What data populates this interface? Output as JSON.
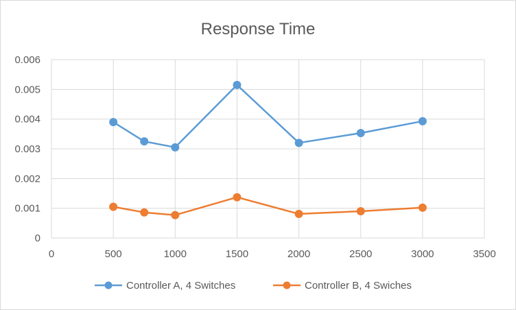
{
  "chart_data": {
    "type": "scatter",
    "title": "Response Time",
    "xlabel": "",
    "ylabel": "",
    "xlim": [
      0,
      3500
    ],
    "ylim": [
      0,
      0.006
    ],
    "xticks": [
      0,
      500,
      1000,
      1500,
      2000,
      2500,
      3000,
      3500
    ],
    "yticks": [
      0,
      0.001,
      0.002,
      0.003,
      0.004,
      0.005,
      0.006
    ],
    "xtick_labels": [
      "0",
      "500",
      "1000",
      "1500",
      "2000",
      "2500",
      "3000",
      "3500"
    ],
    "ytick_labels": [
      "0",
      "0.001",
      "0.002",
      "0.003",
      "0.004",
      "0.005",
      "0.006"
    ],
    "grid": true,
    "legend_position": "bottom",
    "series": [
      {
        "name": "Controller A, 4 Switches",
        "color": "#5b9bd5",
        "x": [
          500,
          750,
          1000,
          1500,
          2000,
          2500,
          3000
        ],
        "y": [
          0.0039,
          0.00325,
          0.00305,
          0.00515,
          0.0032,
          0.00353,
          0.00393
        ]
      },
      {
        "name": "Controller B, 4 Swiches",
        "color": "#ed7d31",
        "x": [
          500,
          750,
          1000,
          1500,
          2000,
          2500,
          3000
        ],
        "y": [
          0.00105,
          0.00086,
          0.00077,
          0.00137,
          0.00081,
          0.0009,
          0.00102
        ]
      }
    ]
  }
}
